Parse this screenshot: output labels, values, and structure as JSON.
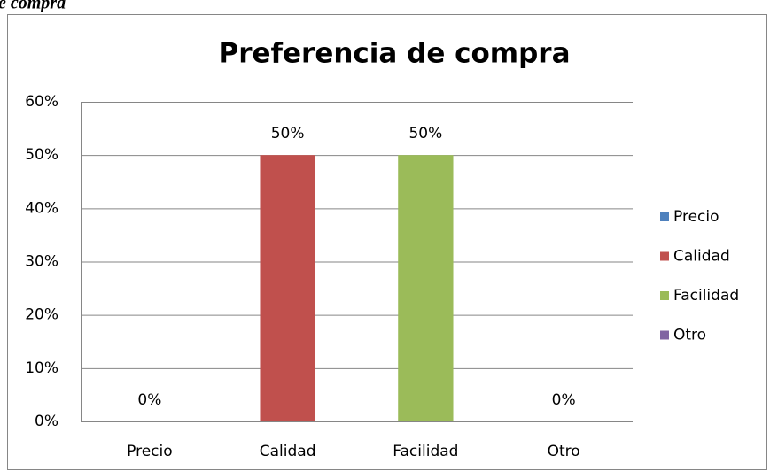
{
  "caption": "e compra",
  "chart_data": {
    "type": "bar",
    "title": "Preferencia de compra",
    "categories": [
      "Precio",
      "Calidad",
      "Facilidad",
      "Otro"
    ],
    "values": [
      0,
      50,
      50,
      0
    ],
    "value_labels": [
      "0%",
      "50%",
      "50%",
      "0%"
    ],
    "colors": [
      "#4f81bd",
      "#c0504d",
      "#9bbb59",
      "#8064a2"
    ],
    "ylim": [
      0,
      60
    ],
    "yticks": [
      {
        "value": 0,
        "label": "0%"
      },
      {
        "value": 10,
        "label": "10%"
      },
      {
        "value": 20,
        "label": "20%"
      },
      {
        "value": 30,
        "label": "30%"
      },
      {
        "value": 40,
        "label": "40%"
      },
      {
        "value": 50,
        "label": "50%"
      },
      {
        "value": 60,
        "label": "60%"
      }
    ],
    "grid": true,
    "legend": "right"
  }
}
